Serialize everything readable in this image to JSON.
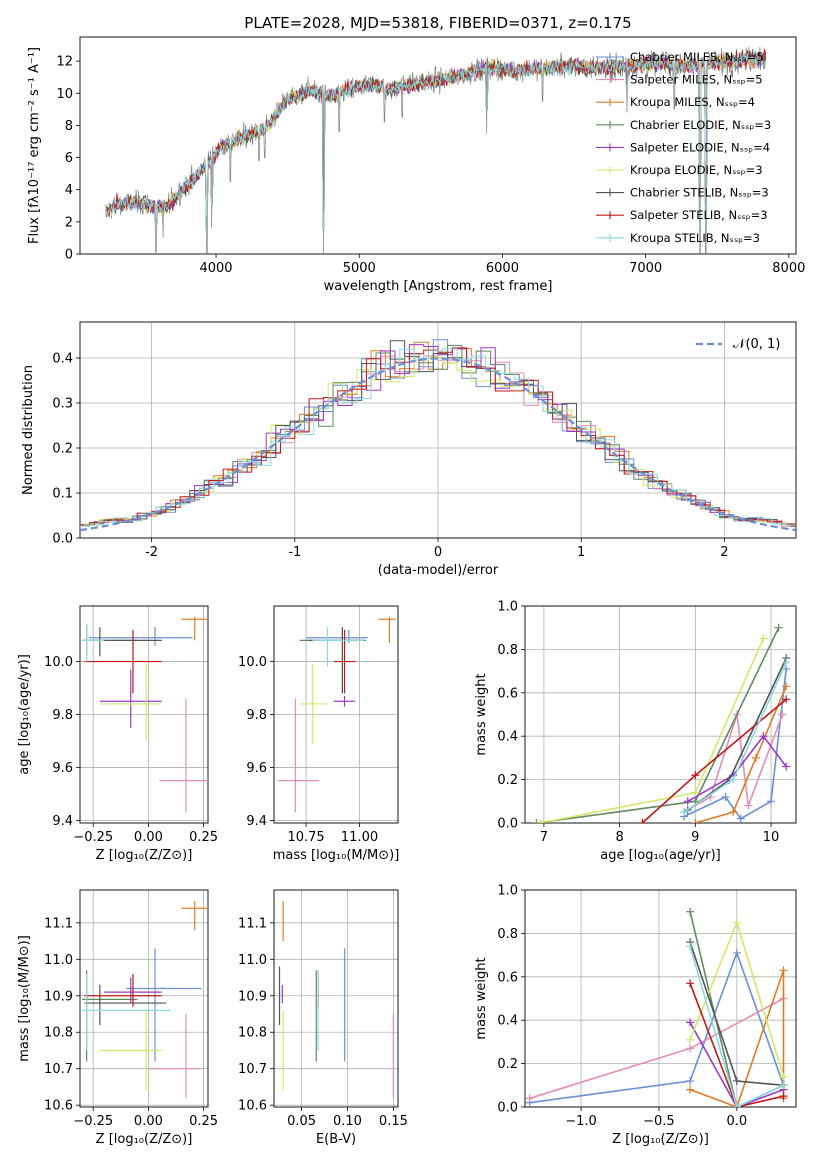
{
  "title": "PLATE=2028, MJD=53818, FIBERID=0371, z=0.175",
  "colors": {
    "Chabrier MILES": "#6a8fd6",
    "Salpeter MILES": "#e88bb8",
    "Kroupa MILES": "#e07b25",
    "Chabrier ELODIE": "#5e8a5e",
    "Salpeter ELODIE": "#9b38c9",
    "Kroupa ELODIE": "#d4e86a",
    "Chabrier STELIB": "#555555",
    "Salpeter STELIB": "#c01818",
    "Kroupa STELIB": "#8ad9e0"
  },
  "chart_data": [
    {
      "id": "spectrum",
      "type": "line",
      "xlabel": "wavelength [Angstrom, rest frame]",
      "ylabel": "Flux [fλ10⁻¹⁷ erg cm⁻² s⁻¹ A⁻¹]",
      "xlim": [
        3050,
        8050
      ],
      "ylim": [
        0,
        13.5
      ],
      "xticks": [
        4000,
        5000,
        6000,
        7000,
        8000
      ],
      "yticks": [
        0,
        2,
        4,
        6,
        8,
        10,
        12
      ],
      "legend": [
        "Chabrier MILES, Nₛₛₚ=5",
        "Salpeter MILES, Nₛₛₚ=5",
        "Kroupa MILES, Nₛₛₚ=4",
        "Chabrier ELODIE, Nₛₛₚ=3",
        "Salpeter ELODIE, Nₛₛₚ=4",
        "Kroupa ELODIE, Nₛₛₚ=3",
        "Chabrier STELIB, Nₛₛₚ=3",
        "Salpeter STELIB, Nₛₛₚ=3",
        "Kroupa STELIB, Nₛₛₚ=3"
      ],
      "data_series": "observed",
      "data_color": "#808080",
      "continuum": [
        [
          3230,
          2.6
        ],
        [
          3300,
          3.1
        ],
        [
          3450,
          3.2
        ],
        [
          3550,
          3.0
        ],
        [
          3650,
          2.9
        ],
        [
          3800,
          4.3
        ],
        [
          3950,
          5.7
        ],
        [
          4050,
          6.8
        ],
        [
          4200,
          7.3
        ],
        [
          4350,
          7.9
        ],
        [
          4500,
          9.6
        ],
        [
          4650,
          10.2
        ],
        [
          4800,
          9.8
        ],
        [
          4950,
          10.3
        ],
        [
          5100,
          10.6
        ],
        [
          5200,
          10.2
        ],
        [
          5300,
          10.5
        ],
        [
          5500,
          10.7
        ],
        [
          5700,
          11.1
        ],
        [
          5900,
          11.6
        ],
        [
          6100,
          11.4
        ],
        [
          6300,
          11.6
        ],
        [
          6500,
          11.7
        ],
        [
          6700,
          11.6
        ],
        [
          6900,
          11.7
        ],
        [
          7100,
          11.9
        ],
        [
          7300,
          11.7
        ],
        [
          7500,
          11.9
        ],
        [
          7700,
          12.1
        ],
        [
          7830,
          12.2
        ]
      ],
      "absorption": [
        [
          3580,
          0.1
        ],
        [
          3630,
          1.0
        ],
        [
          3935,
          0.0
        ],
        [
          3970,
          1.6
        ],
        [
          4100,
          4.5
        ],
        [
          4300,
          5.8
        ],
        [
          4340,
          6.0
        ],
        [
          4750,
          0.0
        ],
        [
          4860,
          7.6
        ],
        [
          5175,
          8.2
        ],
        [
          5300,
          8.5
        ],
        [
          5890,
          7.5
        ],
        [
          6280,
          9.5
        ],
        [
          6870,
          8.8
        ],
        [
          7200,
          9.0
        ],
        [
          7380,
          0.0
        ],
        [
          7420,
          0.0
        ]
      ]
    },
    {
      "id": "residuals",
      "type": "histogram",
      "xlabel": "(data-model)/error",
      "ylabel": "Normed distribution",
      "xlim": [
        -2.5,
        2.5
      ],
      "ylim": [
        0,
        0.48
      ],
      "xticks": [
        -2,
        -1,
        0,
        1,
        2
      ],
      "yticks": [
        0.0,
        0.1,
        0.2,
        0.3,
        0.4
      ],
      "bin_width": 0.1,
      "normal_label": "𝒩(0, 1)",
      "normal_color": "#6a8fd6"
    },
    {
      "id": "z_age",
      "type": "scatter",
      "xlabel": "Z [log₁₀(Z/Z⊙)]",
      "ylabel": "age  [log₁₀(age/yr)]",
      "xlim": [
        -0.31,
        0.27
      ],
      "ylim": [
        9.39,
        10.21
      ],
      "xticks": [
        -0.25,
        0.0,
        0.25
      ],
      "xticklabels": [
        "−0.25",
        "0.00",
        "0.25"
      ],
      "yticks": [
        9.4,
        9.6,
        9.8,
        10.0
      ],
      "points": [
        {
          "m": "Chabrier MILES",
          "x": 0.03,
          "y": 10.09,
          "ex": [
            -0.27,
            0.2
          ],
          "ey": [
            10.06,
            10.13
          ]
        },
        {
          "m": "Salpeter MILES",
          "x": 0.17,
          "y": 9.55,
          "ex": [
            0.05,
            0.27
          ],
          "ey": [
            9.43,
            9.86
          ]
        },
        {
          "m": "Kroupa MILES",
          "x": 0.21,
          "y": 10.16,
          "ex": [
            0.15,
            0.27
          ],
          "ey": [
            10.08,
            10.17
          ]
        },
        {
          "m": "Chabrier ELODIE",
          "x": -0.28,
          "y": 10.08,
          "ex": [
            -0.3,
            -0.05
          ],
          "ey": [
            10.02,
            10.14
          ]
        },
        {
          "m": "Salpeter ELODIE",
          "x": -0.08,
          "y": 9.85,
          "ex": [
            -0.22,
            0.06
          ],
          "ey": [
            9.75,
            9.97
          ]
        },
        {
          "m": "Kroupa ELODIE",
          "x": -0.01,
          "y": 9.84,
          "ex": [
            -0.22,
            0.06
          ],
          "ey": [
            9.7,
            9.99
          ]
        },
        {
          "m": "Chabrier STELIB",
          "x": -0.22,
          "y": 10.08,
          "ex": [
            -0.29,
            0.06
          ],
          "ey": [
            10.02,
            10.13
          ]
        },
        {
          "m": "Salpeter STELIB",
          "x": -0.07,
          "y": 10.0,
          "ex": [
            -0.29,
            0.06
          ],
          "ey": [
            9.88,
            10.12
          ]
        },
        {
          "m": "Kroupa STELIB",
          "x": -0.28,
          "y": 10.08,
          "ex": [
            -0.3,
            -0.2
          ],
          "ey": [
            10.0,
            10.14
          ]
        }
      ]
    },
    {
      "id": "mass_age",
      "type": "scatter",
      "xlabel": "mass [log₁₀(M/M⊙)]",
      "ylabel": "",
      "xlim": [
        10.6,
        11.18
      ],
      "ylim": [
        9.39,
        10.21
      ],
      "xticks": [
        10.75,
        11.0
      ],
      "xticklabels": [
        "10.75",
        "11.00"
      ],
      "yticks": [
        9.4,
        9.6,
        9.8,
        10.0
      ],
      "points": [
        {
          "m": "Chabrier MILES",
          "x": 10.95,
          "y": 10.09,
          "ex": [
            10.75,
            11.04
          ],
          "ey": [
            10.07,
            10.12
          ]
        },
        {
          "m": "Salpeter MILES",
          "x": 10.7,
          "y": 9.55,
          "ex": [
            10.62,
            10.81
          ],
          "ey": [
            9.43,
            9.86
          ]
        },
        {
          "m": "Kroupa MILES",
          "x": 11.14,
          "y": 10.16,
          "ex": [
            11.09,
            11.17
          ],
          "ey": [
            10.07,
            10.17
          ]
        },
        {
          "m": "Chabrier ELODIE",
          "x": 10.92,
          "y": 10.08,
          "ex": [
            10.72,
            11.03
          ],
          "ey": [
            9.88,
            10.13
          ]
        },
        {
          "m": "Salpeter ELODIE",
          "x": 10.93,
          "y": 9.85,
          "ex": [
            10.88,
            10.98
          ],
          "ey": [
            9.83,
            9.87
          ]
        },
        {
          "m": "Kroupa ELODIE",
          "x": 10.78,
          "y": 9.84,
          "ex": [
            10.72,
            10.85
          ],
          "ey": [
            9.69,
            9.99
          ]
        },
        {
          "m": "Chabrier STELIB",
          "x": 10.92,
          "y": 10.08,
          "ex": [
            10.76,
            11.02
          ],
          "ey": [
            9.88,
            10.13
          ]
        },
        {
          "m": "Salpeter STELIB",
          "x": 10.93,
          "y": 10.0,
          "ex": [
            10.88,
            10.98
          ],
          "ey": [
            9.88,
            10.12
          ]
        },
        {
          "m": "Kroupa STELIB",
          "x": 10.85,
          "y": 10.08,
          "ex": [
            10.78,
            11.02
          ],
          "ey": [
            9.98,
            10.13
          ]
        }
      ]
    },
    {
      "id": "age_weight",
      "type": "line",
      "xlabel": "age  [log₁₀(age/yr)]",
      "ylabel": "mass weight",
      "xlim": [
        6.75,
        10.33
      ],
      "ylim": [
        0,
        1
      ],
      "xticks": [
        7,
        8,
        9,
        10
      ],
      "xticklabels": [
        "7",
        "8",
        "9",
        "10"
      ],
      "yticks": [
        0,
        0.2,
        0.4,
        0.6,
        0.8,
        1.0
      ],
      "yticklabels": [
        "0.0",
        "0.2",
        "0.4",
        "0.6",
        "0.8",
        "1.0"
      ],
      "series": [
        {
          "m": "Chabrier MILES",
          "x": [
            8.85,
            9.4,
            9.6,
            10.0,
            10.2
          ],
          "y": [
            0.03,
            0.12,
            0.02,
            0.1,
            0.71
          ]
        },
        {
          "m": "Salpeter MILES",
          "x": [
            8.85,
            9.2,
            9.55,
            9.7,
            10.15
          ],
          "y": [
            0.05,
            0.12,
            0.5,
            0.08,
            0.5
          ]
        },
        {
          "m": "Kroupa MILES",
          "x": [
            9.0,
            9.5,
            9.8,
            10.2
          ],
          "y": [
            0.0,
            0.05,
            0.3,
            0.63
          ]
        },
        {
          "m": "Chabrier ELODIE",
          "x": [
            6.9,
            9.0,
            10.1
          ],
          "y": [
            0.0,
            0.1,
            0.9
          ]
        },
        {
          "m": "Salpeter ELODIE",
          "x": [
            8.9,
            9.5,
            9.9,
            10.2
          ],
          "y": [
            0.1,
            0.22,
            0.4,
            0.26
          ]
        },
        {
          "m": "Kroupa ELODIE",
          "x": [
            6.95,
            9.0,
            9.9
          ],
          "y": [
            0.0,
            0.14,
            0.85
          ]
        },
        {
          "m": "Chabrier STELIB",
          "x": [
            8.9,
            9.45,
            10.2
          ],
          "y": [
            0.06,
            0.2,
            0.76
          ]
        },
        {
          "m": "Salpeter STELIB",
          "x": [
            8.3,
            9.0,
            10.2
          ],
          "y": [
            0.0,
            0.22,
            0.57
          ]
        },
        {
          "m": "Kroupa STELIB",
          "x": [
            8.85,
            9.5,
            10.2
          ],
          "y": [
            0.05,
            0.2,
            0.74
          ]
        }
      ]
    },
    {
      "id": "z_mass",
      "type": "scatter",
      "xlabel": "Z [log₁₀(Z/Z⊙)]",
      "ylabel": "mass [log₁₀(M/M⊙)]",
      "xlim": [
        -0.31,
        0.27
      ],
      "ylim": [
        10.595,
        11.19
      ],
      "xticks": [
        -0.25,
        0.0,
        0.25
      ],
      "xticklabels": [
        "−0.25",
        "0.00",
        "0.25"
      ],
      "yticks": [
        10.6,
        10.7,
        10.8,
        10.9,
        11.0,
        11.1
      ],
      "points": [
        {
          "m": "Chabrier MILES",
          "x": 0.03,
          "y": 10.92,
          "ex": [
            -0.1,
            0.24
          ],
          "ey": [
            10.72,
            11.03
          ]
        },
        {
          "m": "Salpeter MILES",
          "x": 0.17,
          "y": 10.7,
          "ex": [
            0.0,
            0.24
          ],
          "ey": [
            10.62,
            10.85
          ]
        },
        {
          "m": "Kroupa MILES",
          "x": 0.21,
          "y": 11.14,
          "ex": [
            0.15,
            0.27
          ],
          "ey": [
            11.08,
            11.16
          ]
        },
        {
          "m": "Chabrier ELODIE",
          "x": -0.28,
          "y": 10.89,
          "ex": [
            -0.3,
            -0.05
          ],
          "ey": [
            10.72,
            10.97
          ]
        },
        {
          "m": "Salpeter ELODIE",
          "x": -0.08,
          "y": 10.91,
          "ex": [
            -0.2,
            0.06
          ],
          "ey": [
            10.88,
            10.95
          ]
        },
        {
          "m": "Kroupa ELODIE",
          "x": -0.01,
          "y": 10.75,
          "ex": [
            -0.22,
            0.06
          ],
          "ey": [
            10.64,
            10.86
          ]
        },
        {
          "m": "Chabrier STELIB",
          "x": -0.22,
          "y": 10.88,
          "ex": [
            -0.29,
            0.08
          ],
          "ey": [
            10.82,
            10.93
          ]
        },
        {
          "m": "Salpeter STELIB",
          "x": -0.07,
          "y": 10.9,
          "ex": [
            -0.29,
            0.06
          ],
          "ey": [
            10.87,
            10.96
          ]
        },
        {
          "m": "Kroupa STELIB",
          "x": -0.28,
          "y": 10.86,
          "ex": [
            -0.3,
            0.1
          ],
          "ey": [
            10.75,
            10.96
          ]
        }
      ]
    },
    {
      "id": "ebv_mass",
      "type": "scatter",
      "xlabel": "E(B-V)",
      "ylabel": "",
      "xlim": [
        0.02,
        0.155
      ],
      "ylim": [
        10.595,
        11.19
      ],
      "xticks": [
        0.05,
        0.1,
        0.15
      ],
      "xticklabels": [
        "0.05",
        "0.10",
        "0.15"
      ],
      "yticks": [
        10.6,
        10.7,
        10.8,
        10.9,
        11.0,
        11.1
      ],
      "points": [
        {
          "m": "Chabrier MILES",
          "x": 0.097,
          "y": 10.92,
          "ey": [
            10.72,
            11.03
          ]
        },
        {
          "m": "Salpeter MILES",
          "x": 0.15,
          "y": 10.7,
          "ey": [
            10.62,
            10.85
          ]
        },
        {
          "m": "Kroupa MILES",
          "x": 0.03,
          "y": 11.14,
          "ey": [
            11.05,
            11.16
          ]
        },
        {
          "m": "Chabrier ELODIE",
          "x": 0.066,
          "y": 10.89,
          "ey": [
            10.72,
            10.97
          ]
        },
        {
          "m": "Salpeter ELODIE",
          "x": 0.029,
          "y": 10.91,
          "ey": [
            10.88,
            10.93
          ]
        },
        {
          "m": "Kroupa ELODIE",
          "x": 0.03,
          "y": 10.75,
          "ey": [
            10.64,
            10.86
          ]
        },
        {
          "m": "Chabrier STELIB",
          "x": 0.026,
          "y": 10.88,
          "ey": [
            10.82,
            10.98
          ]
        },
        {
          "m": "Salpeter STELIB",
          "x": 0.068,
          "y": 10.9,
          "ey": [
            10.87,
            10.96
          ]
        },
        {
          "m": "Kroupa STELIB",
          "x": 0.068,
          "y": 10.86,
          "ey": [
            10.75,
            10.97
          ]
        }
      ]
    },
    {
      "id": "z_weight",
      "type": "line",
      "xlabel": "Z [log₁₀(Z/Z⊙)]",
      "ylabel": "mass weight",
      "xlim": [
        -1.36,
        0.38
      ],
      "ylim": [
        0,
        1
      ],
      "xticks": [
        -1.0,
        -0.5,
        0.0
      ],
      "xticklabels": [
        "−1.0",
        "−0.5",
        "0.0"
      ],
      "yticks": [
        0,
        0.2,
        0.4,
        0.6,
        0.8,
        1.0
      ],
      "yticklabels": [
        "0.0",
        "0.2",
        "0.4",
        "0.6",
        "0.8",
        "1.0"
      ],
      "series": [
        {
          "m": "Chabrier MILES",
          "x": [
            -1.33,
            -0.3,
            0.0,
            0.3
          ],
          "y": [
            0.02,
            0.12,
            0.71,
            0.1
          ]
        },
        {
          "m": "Salpeter MILES",
          "x": [
            -1.33,
            -0.3,
            0.3
          ],
          "y": [
            0.04,
            0.27,
            0.5
          ]
        },
        {
          "m": "Kroupa MILES",
          "x": [
            -0.3,
            0.0,
            0.3,
            0.3
          ],
          "y": [
            0.08,
            0.0,
            0.63,
            0.04
          ]
        },
        {
          "m": "Chabrier ELODIE",
          "x": [
            -0.3,
            0.0,
            0.3
          ],
          "y": [
            0.9,
            0.0,
            0.1
          ]
        },
        {
          "m": "Salpeter ELODIE",
          "x": [
            -0.3,
            0.0,
            0.3
          ],
          "y": [
            0.39,
            0.0,
            0.08
          ]
        },
        {
          "m": "Kroupa ELODIE",
          "x": [
            -0.3,
            0.0,
            0.3
          ],
          "y": [
            0.31,
            0.85,
            0.14
          ]
        },
        {
          "m": "Chabrier STELIB",
          "x": [
            -0.3,
            0.0,
            0.3
          ],
          "y": [
            0.76,
            0.12,
            0.1
          ]
        },
        {
          "m": "Salpeter STELIB",
          "x": [
            -0.3,
            0.0,
            0.3
          ],
          "y": [
            0.57,
            0.0,
            0.05
          ]
        },
        {
          "m": "Kroupa STELIB",
          "x": [
            -0.3,
            0.0,
            0.3
          ],
          "y": [
            0.74,
            0.0,
            0.1
          ]
        }
      ]
    }
  ]
}
